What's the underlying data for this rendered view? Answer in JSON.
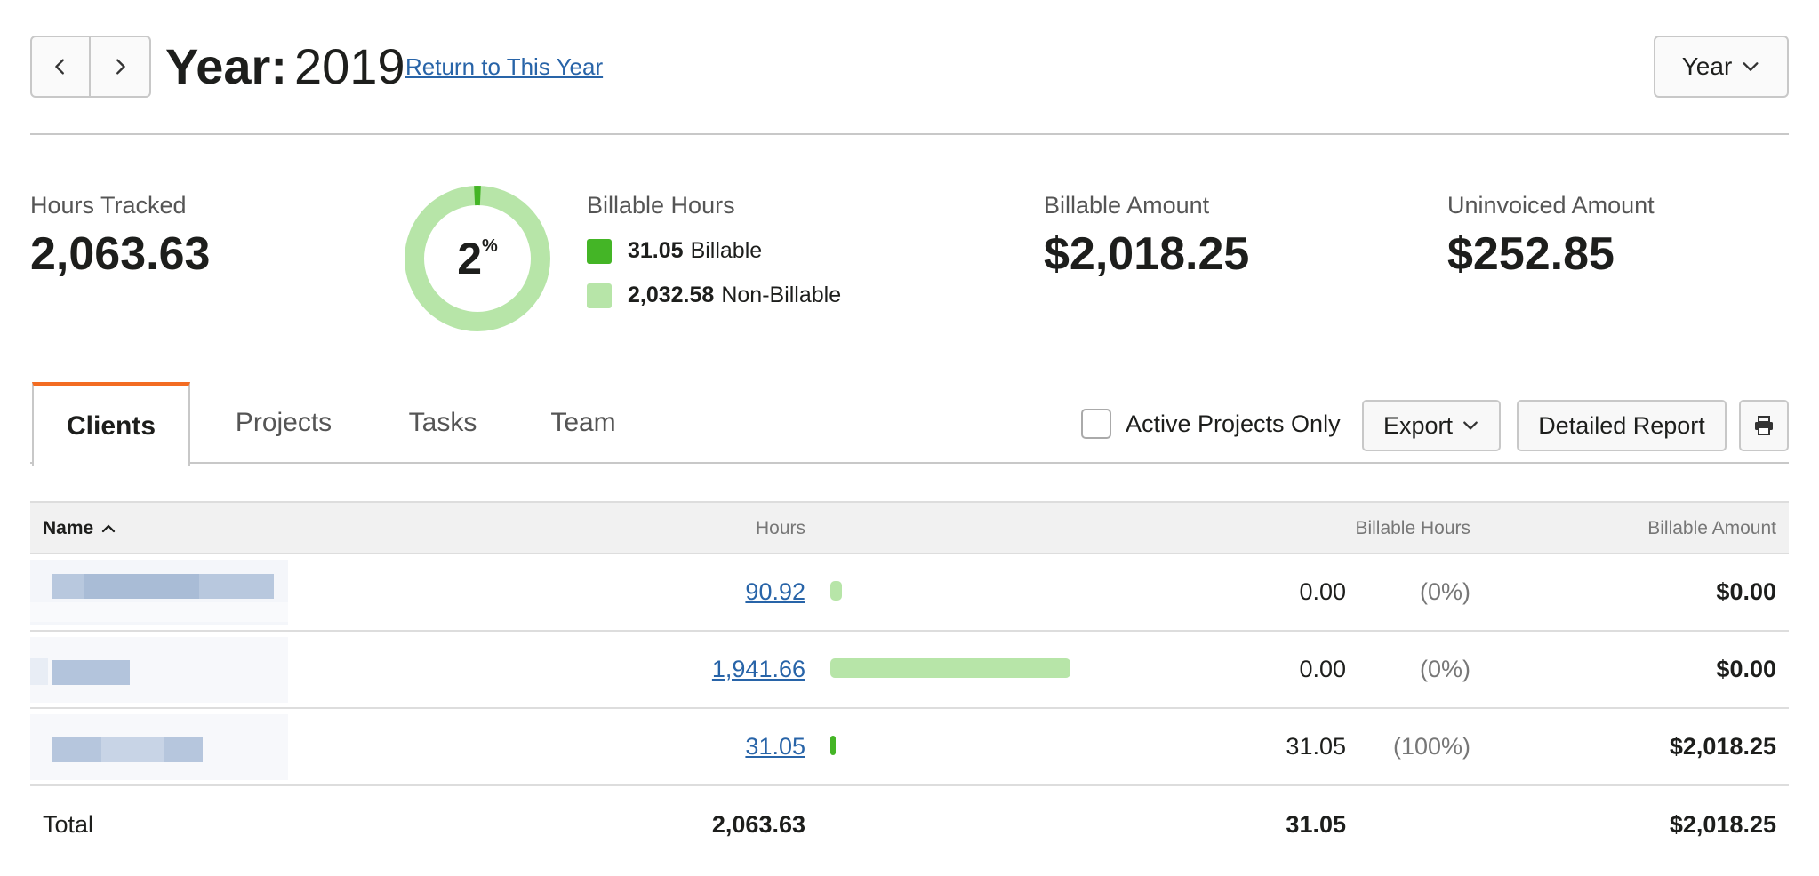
{
  "header": {
    "title_label": "Year:",
    "title_value": "2019",
    "return_link": "Return to This Year",
    "period_select": "Year"
  },
  "summary": {
    "hours_tracked_label": "Hours Tracked",
    "hours_tracked_value": "2,063.63",
    "billable_percent": "2",
    "billable_percent_sign": "%",
    "billable_fraction": 0.015,
    "billable_hours_label": "Billable Hours",
    "billable_hours_value": "31.05",
    "billable_legend_label": "Billable",
    "nonbillable_hours_value": "2,032.58",
    "nonbillable_legend_label": "Non-Billable",
    "billable_amount_label": "Billable Amount",
    "billable_amount_value": "$2,018.25",
    "uninvoiced_amount_label": "Uninvoiced Amount",
    "uninvoiced_amount_value": "$252.85"
  },
  "tabs": [
    {
      "label": "Clients",
      "active": true
    },
    {
      "label": "Projects",
      "active": false
    },
    {
      "label": "Tasks",
      "active": false
    },
    {
      "label": "Team",
      "active": false
    }
  ],
  "toolbar": {
    "active_projects_label": "Active Projects Only",
    "active_projects_checked": false,
    "export_label": "Export",
    "detailed_report_label": "Detailed Report",
    "print_icon": "printer-icon"
  },
  "table": {
    "columns": {
      "name": "Name",
      "hours": "Hours",
      "billable_hours": "Billable Hours",
      "billable_amount": "Billable Amount"
    },
    "rows": [
      {
        "name_redacted": true,
        "hours": "90.92",
        "hours_fraction": 0.0468,
        "billable_hours": "0.00",
        "billable_pct": "(0%)",
        "billable_amount": "$0.00",
        "bar_color": "#b7e5a8"
      },
      {
        "name_redacted": true,
        "hours": "1,941.66",
        "hours_fraction": 1.0,
        "billable_hours": "0.00",
        "billable_pct": "(0%)",
        "billable_amount": "$0.00",
        "bar_color": "#b7e5a8"
      },
      {
        "name_redacted": true,
        "hours": "31.05",
        "hours_fraction": 0.016,
        "billable_hours": "31.05",
        "billable_pct": "(100%)",
        "billable_amount": "$2,018.25",
        "bar_color": "#44b526"
      }
    ],
    "total": {
      "label": "Total",
      "hours": "2,063.63",
      "billable_hours": "31.05",
      "billable_amount": "$2,018.25"
    }
  },
  "colors": {
    "billable": "#44b526",
    "nonbillable": "#b7e5a8",
    "accent": "#f36c22",
    "link": "#2864a8"
  }
}
